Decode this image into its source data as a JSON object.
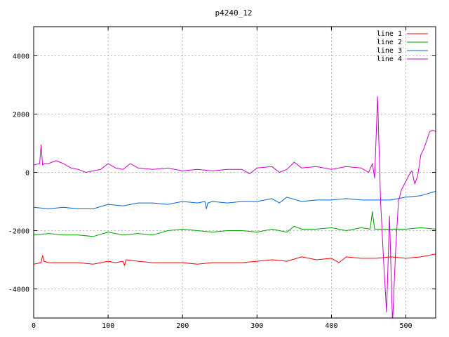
{
  "chart_data": {
    "type": "line",
    "title": "p4240_12",
    "xlabel": "",
    "ylabel": "",
    "xlim": [
      0,
      540
    ],
    "ylim": [
      -5000,
      5000
    ],
    "x_ticks": [
      0,
      100,
      200,
      300,
      400,
      500
    ],
    "y_ticks": [
      -4000,
      -2000,
      0,
      2000,
      4000
    ],
    "grid": true,
    "legend_position": "top-right",
    "series": [
      {
        "name": "line 1",
        "color": "#ff0000",
        "x": [
          0,
          10,
          12,
          14,
          20,
          40,
          60,
          80,
          100,
          110,
          120,
          122,
          124,
          140,
          160,
          180,
          200,
          220,
          240,
          260,
          280,
          300,
          320,
          340,
          360,
          380,
          400,
          410,
          420,
          440,
          460,
          480,
          500,
          520,
          540
        ],
        "y": [
          -3150,
          -3100,
          -2850,
          -3050,
          -3100,
          -3100,
          -3100,
          -3150,
          -3050,
          -3100,
          -3050,
          -3200,
          -3000,
          -3050,
          -3100,
          -3100,
          -3100,
          -3150,
          -3100,
          -3100,
          -3100,
          -3050,
          -3000,
          -3050,
          -2900,
          -3000,
          -2950,
          -3100,
          -2900,
          -2950,
          -2950,
          -2900,
          -2950,
          -2900,
          -2800
        ]
      },
      {
        "name": "line 2",
        "color": "#00a000",
        "x": [
          0,
          20,
          40,
          60,
          80,
          100,
          120,
          140,
          160,
          180,
          200,
          220,
          240,
          260,
          280,
          300,
          320,
          340,
          350,
          360,
          380,
          400,
          420,
          440,
          452,
          455,
          458,
          470,
          500,
          520,
          540
        ],
        "y": [
          -2150,
          -2100,
          -2150,
          -2150,
          -2200,
          -2050,
          -2150,
          -2100,
          -2150,
          -2000,
          -1950,
          -2000,
          -2050,
          -2000,
          -2000,
          -2050,
          -1950,
          -2050,
          -1850,
          -1950,
          -1950,
          -1900,
          -2000,
          -1900,
          -1950,
          -1350,
          -1950,
          -1950,
          -1950,
          -1900,
          -1950
        ]
      },
      {
        "name": "line 3",
        "color": "#0066cc",
        "x": [
          0,
          20,
          40,
          60,
          80,
          100,
          120,
          140,
          160,
          180,
          200,
          220,
          230,
          232,
          234,
          240,
          260,
          280,
          300,
          320,
          330,
          340,
          360,
          380,
          400,
          420,
          440,
          460,
          480,
          500,
          520,
          540
        ],
        "y": [
          -1200,
          -1250,
          -1200,
          -1250,
          -1250,
          -1100,
          -1150,
          -1050,
          -1050,
          -1100,
          -1000,
          -1050,
          -1000,
          -1250,
          -1050,
          -1000,
          -1050,
          -1000,
          -1000,
          -900,
          -1050,
          -850,
          -1000,
          -950,
          -950,
          -900,
          -950,
          -950,
          -950,
          -850,
          -800,
          -650
        ]
      },
      {
        "name": "line 4",
        "color": "#cc00cc",
        "x": [
          0,
          8,
          10,
          12,
          14,
          20,
          30,
          40,
          50,
          60,
          70,
          80,
          90,
          100,
          110,
          120,
          130,
          140,
          160,
          180,
          200,
          220,
          240,
          260,
          280,
          290,
          300,
          320,
          330,
          340,
          350,
          360,
          380,
          400,
          420,
          440,
          450,
          455,
          458,
          462,
          466,
          470,
          474,
          478,
          482,
          486,
          490,
          494,
          500,
          504,
          508,
          512,
          516,
          520,
          524,
          528,
          532,
          536,
          540
        ],
        "y": [
          250,
          300,
          950,
          250,
          300,
          300,
          400,
          300,
          150,
          100,
          0,
          50,
          100,
          300,
          150,
          100,
          300,
          150,
          100,
          150,
          50,
          100,
          50,
          100,
          100,
          -50,
          150,
          200,
          0,
          100,
          350,
          150,
          200,
          100,
          200,
          150,
          0,
          300,
          -200,
          2600,
          -1000,
          -3000,
          -4800,
          -1500,
          -5200,
          -2800,
          -1000,
          -600,
          -300,
          -100,
          50,
          -400,
          -100,
          600,
          800,
          1100,
          1400,
          1450,
          1400
        ]
      }
    ]
  }
}
